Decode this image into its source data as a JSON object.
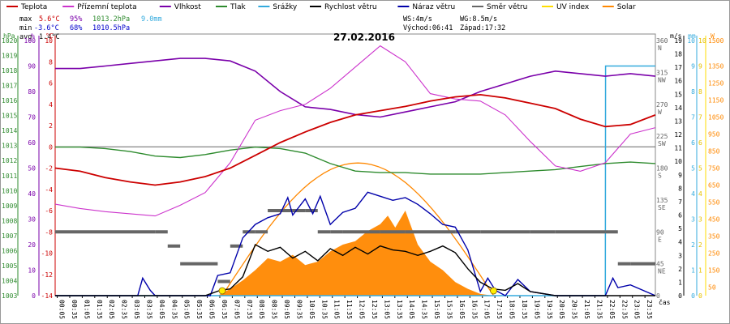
{
  "chart_data": {
    "type": "line",
    "title": "27.02.2016",
    "legend": [
      {
        "name": "Teplota",
        "color": "#cc0000"
      },
      {
        "name": "Přízemní teplota",
        "color": "#cc33cc"
      },
      {
        "name": "Vlhkost",
        "color": "#7a00aa"
      },
      {
        "name": "Tlak",
        "color": "#2e8b2e"
      },
      {
        "name": "Srážky",
        "color": "#33aadd"
      },
      {
        "name": "Rychlost větru",
        "color": "#000000"
      },
      {
        "name": "Náraz větru",
        "color": "#0000aa"
      },
      {
        "name": "Směr větru",
        "color": "#666666"
      },
      {
        "name": "UV index",
        "color": "#ffdd00"
      },
      {
        "name": "Solar",
        "color": "#ff8800"
      }
    ],
    "stats": {
      "max_label": "max",
      "max_temp": "5.6°C",
      "max_hum": "95%",
      "max_press": "1013.2hPa",
      "rain": "9.0mm",
      "min_label": "min",
      "min_temp": "-3.6°C",
      "min_hum": "68%",
      "min_press": "1010.5hPa",
      "avg_label": "avg",
      "avg_temp": "1.4°C",
      "ws": "WS:4m/s",
      "wg": "WG:8.5m/s",
      "sunrise": "Východ:06:41",
      "sunset": "Západ:17:32"
    },
    "axes": {
      "hpa": {
        "unit": "hPa",
        "ticks": [
          "1020",
          "1019",
          "1018",
          "1017",
          "1016",
          "1015",
          "1014",
          "1013",
          "1012",
          "1011",
          "1010",
          "1009",
          "1008",
          "1007",
          "1006",
          "1005",
          "1004",
          "1003"
        ]
      },
      "percent": {
        "unit": "%",
        "ticks": [
          "100",
          "90",
          "80",
          "70",
          "60",
          "50",
          "40",
          "30",
          "20",
          "10",
          "0"
        ]
      },
      "celsius": {
        "unit": "°C",
        "ticks": [
          "10",
          "8",
          "6",
          "4",
          "2",
          "0",
          "-2",
          "-4",
          "-6",
          "-8",
          "-10",
          "-12",
          "-14"
        ]
      },
      "direction": {
        "unit": "°",
        "ticks": [
          {
            "deg": "360",
            "dir": "N"
          },
          {
            "deg": "315",
            "dir": "NW"
          },
          {
            "deg": "270",
            "dir": "W"
          },
          {
            "deg": "225",
            "dir": "SW"
          },
          {
            "deg": "180",
            "dir": "S"
          },
          {
            "deg": "135",
            "dir": "SE"
          },
          {
            "deg": "90",
            "dir": "E"
          },
          {
            "deg": "45",
            "dir": "NE"
          },
          {
            "deg": "0",
            "dir": ""
          }
        ]
      },
      "ms": {
        "unit": "m/s",
        "ticks": [
          "19",
          "18",
          "17",
          "16",
          "15",
          "14",
          "13",
          "12",
          "11",
          "10",
          "9",
          "8",
          "7",
          "6",
          "5",
          "4",
          "3",
          "2",
          "1",
          "0"
        ]
      },
      "mm": {
        "unit": "mm",
        "ticks": [
          "10",
          "9",
          "8",
          "7",
          "6",
          "5",
          "4",
          "3",
          "2",
          "1",
          "0"
        ]
      },
      "uv": {
        "unit": "",
        "ticks": [
          "10",
          "9",
          "8",
          "7",
          "6",
          "5",
          "4",
          "3",
          "2",
          "1",
          "0"
        ]
      },
      "w": {
        "unit": "W",
        "ticks": [
          "1500",
          "1350",
          "1250",
          "1150",
          "1050",
          "950",
          "850",
          "750",
          "650",
          "550",
          "450",
          "350",
          "250",
          "150",
          "50"
        ]
      }
    },
    "x_unit": "čas",
    "x_ticks": [
      "00:05",
      "00:35",
      "01:05",
      "01:35",
      "02:05",
      "02:35",
      "03:05",
      "03:35",
      "04:05",
      "04:35",
      "05:05",
      "05:35",
      "06:05",
      "06:35",
      "07:05",
      "07:35",
      "08:05",
      "08:35",
      "09:05",
      "09:35",
      "10:05",
      "10:35",
      "11:05",
      "11:35",
      "12:05",
      "12:35",
      "13:05",
      "13:35",
      "14:05",
      "14:35",
      "15:05",
      "15:35",
      "16:05",
      "16:35",
      "17:05",
      "17:35",
      "18:05",
      "18:35",
      "19:05",
      "19:35",
      "20:05",
      "20:35",
      "21:05",
      "21:35",
      "22:05",
      "22:35",
      "23:05",
      "23:35"
    ],
    "series": [
      {
        "name": "Teplota",
        "unit": "°C",
        "x": [
          0,
          1,
          2,
          3,
          4,
          5,
          6,
          7,
          8,
          9,
          10,
          11,
          12,
          13,
          14,
          15,
          16,
          17,
          18,
          19,
          20,
          21,
          22,
          23,
          24
        ],
        "values": [
          -2.0,
          -2.3,
          -2.9,
          -3.3,
          -3.6,
          -3.3,
          -2.8,
          -2.0,
          -0.8,
          0.4,
          1.4,
          2.3,
          3.0,
          3.4,
          3.8,
          4.3,
          4.7,
          4.9,
          4.6,
          4.1,
          3.6,
          2.6,
          1.9,
          2.1,
          3.0
        ]
      },
      {
        "name": "Přízemní teplota",
        "unit": "°C",
        "x": [
          0,
          1,
          2,
          3,
          4,
          5,
          6,
          7,
          8,
          9,
          10,
          11,
          12,
          13,
          14,
          15,
          16,
          17,
          18,
          19,
          20,
          21,
          22,
          23,
          24
        ],
        "values": [
          -5.4,
          -5.8,
          -6.1,
          -6.3,
          -6.5,
          -5.5,
          -4.3,
          -1.5,
          2.5,
          3.4,
          4.0,
          5.5,
          7.5,
          9.5,
          8.0,
          5.0,
          4.5,
          4.3,
          3.0,
          0.5,
          -1.8,
          -2.3,
          -1.5,
          1.2,
          1.8
        ]
      },
      {
        "name": "Vlhkost",
        "unit": "%",
        "x": [
          0,
          1,
          2,
          3,
          4,
          5,
          6,
          7,
          8,
          9,
          10,
          11,
          12,
          13,
          14,
          15,
          16,
          17,
          18,
          19,
          20,
          21,
          22,
          23,
          24
        ],
        "values": [
          89,
          89,
          90,
          91,
          92,
          93,
          93,
          92,
          88,
          80,
          74,
          73,
          71,
          70,
          72,
          74,
          76,
          80,
          83,
          86,
          88,
          87,
          86,
          87,
          86
        ]
      },
      {
        "name": "Tlak",
        "unit": "hPa",
        "x": [
          0,
          1,
          2,
          3,
          4,
          5,
          6,
          7,
          8,
          9,
          10,
          11,
          12,
          13,
          14,
          15,
          16,
          17,
          18,
          19,
          20,
          21,
          22,
          23,
          24
        ],
        "values": [
          1012.9,
          1012.9,
          1012.8,
          1012.6,
          1012.3,
          1012.2,
          1012.4,
          1012.7,
          1012.9,
          1012.8,
          1012.5,
          1011.8,
          1011.3,
          1011.2,
          1011.2,
          1011.1,
          1011.1,
          1011.1,
          1011.2,
          1011.3,
          1011.4,
          1011.6,
          1011.8,
          1011.9,
          1011.8
        ]
      },
      {
        "name": "Rychlost větru",
        "unit": "m/s",
        "x": [
          0,
          4,
          4.5,
          5,
          6,
          6.3,
          6.6,
          7,
          7.5,
          8,
          8.5,
          9,
          9.5,
          10,
          10.5,
          11,
          11.5,
          12,
          12.5,
          13,
          13.5,
          14,
          14.5,
          15,
          15.5,
          16,
          16.5,
          17,
          17.5,
          18,
          18.5,
          19,
          20,
          24
        ],
        "values": [
          0,
          0,
          0,
          0,
          0,
          0.2,
          0.4,
          0.5,
          1.4,
          3.8,
          3.3,
          3.6,
          2.8,
          3.3,
          2.6,
          3.5,
          3.0,
          3.6,
          3.1,
          3.7,
          3.4,
          3.3,
          3.0,
          3.3,
          3.7,
          3.2,
          2.0,
          1.0,
          0.5,
          0.4,
          0.9,
          0.3,
          0,
          0
        ]
      },
      {
        "name": "Náraz větru",
        "unit": "m/s",
        "x": [
          0,
          3.3,
          3.5,
          3.8,
          4.0,
          6.2,
          6.5,
          7,
          7.5,
          8,
          8.5,
          9,
          9.3,
          9.5,
          10,
          10.3,
          10.6,
          11,
          11.5,
          12,
          12.5,
          13,
          13.5,
          14,
          14.5,
          15,
          15.5,
          16,
          16.5,
          17,
          17.3,
          17.6,
          18,
          18.5,
          19,
          20,
          22,
          22.3,
          22.5,
          23,
          24
        ],
        "values": [
          0,
          0,
          1.3,
          0.4,
          0,
          0,
          1.5,
          1.7,
          4.3,
          5.3,
          5.8,
          6.1,
          7.3,
          6.0,
          7.2,
          6.1,
          7.4,
          5.3,
          6.2,
          6.5,
          7.7,
          7.4,
          7.1,
          7.3,
          6.8,
          6.1,
          5.3,
          5.1,
          3.4,
          0.3,
          1.3,
          0.4,
          0,
          1.2,
          0.3,
          0,
          0,
          1.3,
          0.6,
          0.8,
          0
        ]
      },
      {
        "name": "Směr větru",
        "unit": "°",
        "x": [
          0,
          4,
          4.5,
          5,
          6,
          6.5,
          7,
          7.5,
          8,
          8.5,
          9,
          9.5,
          10,
          10.5,
          11,
          11.5,
          12,
          13,
          14,
          15,
          16,
          17,
          18,
          19,
          20,
          21,
          22,
          22.5,
          23,
          24
        ],
        "values": [
          90,
          90,
          70,
          45,
          45,
          20,
          70,
          90,
          90,
          120,
          120,
          120,
          120,
          90,
          90,
          90,
          90,
          90,
          90,
          90,
          90,
          90,
          90,
          90,
          90,
          90,
          90,
          45,
          45,
          45
        ]
      },
      {
        "name": "Srážky",
        "unit": "mm",
        "x": [
          0,
          22.0,
          22.01,
          24
        ],
        "values": [
          0,
          0,
          9.0,
          9.0
        ]
      },
      {
        "name": "Solar",
        "unit": "W",
        "x": [
          6.5,
          7,
          7.5,
          8,
          8.5,
          9,
          9.5,
          10,
          10.5,
          11,
          11.5,
          12,
          12.5,
          13,
          13.3,
          13.6,
          14,
          14.5,
          15,
          15.5,
          16,
          16.5,
          17,
          17.5
        ],
        "values": [
          0,
          40,
          90,
          150,
          220,
          200,
          240,
          180,
          200,
          260,
          300,
          320,
          380,
          420,
          470,
          400,
          500,
          300,
          200,
          150,
          80,
          40,
          10,
          0
        ]
      },
      {
        "name": "UV index",
        "unit": "",
        "x": [
          6.6,
          17.4
        ],
        "values": [
          0,
          0
        ]
      }
    ]
  }
}
